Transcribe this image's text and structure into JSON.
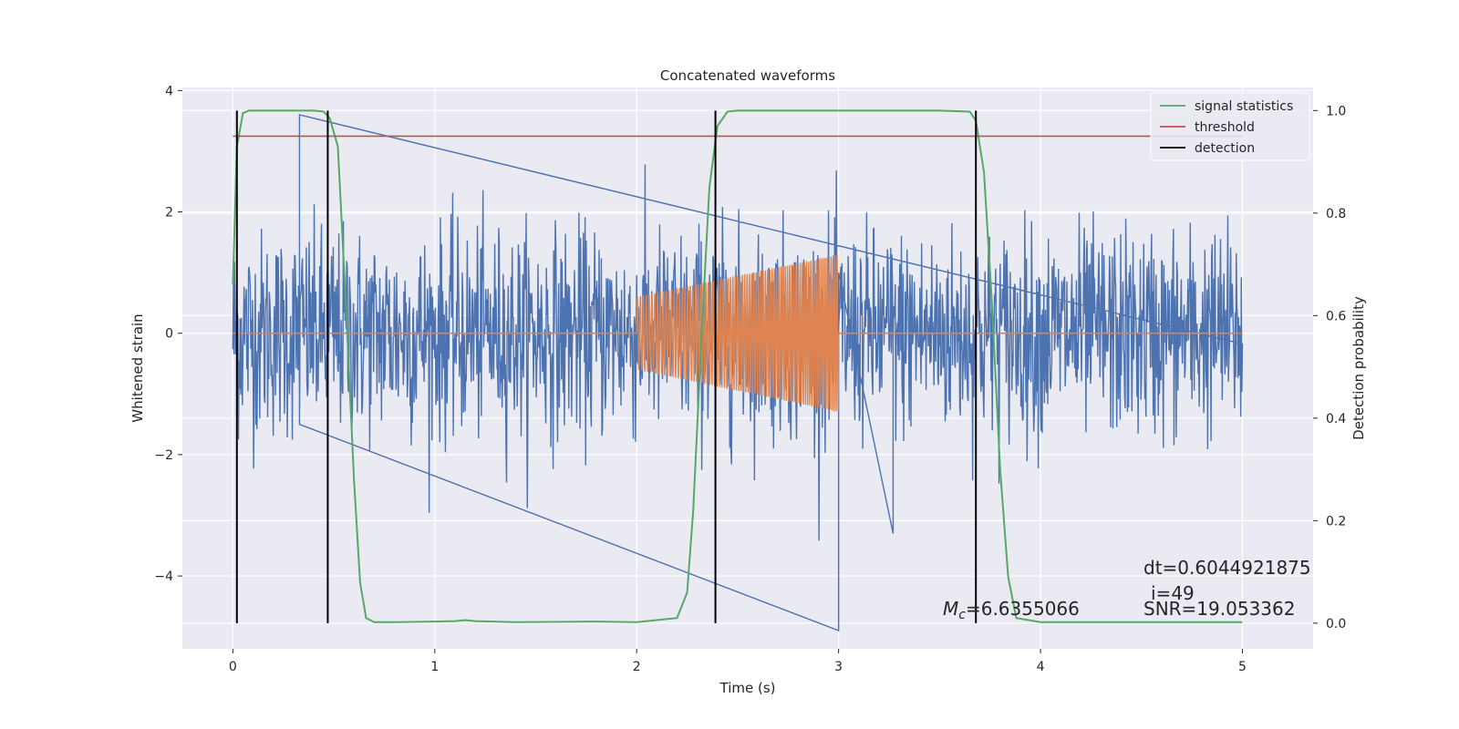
{
  "chart_data": {
    "type": "line",
    "title": "Concatenated waveforms",
    "xlabel": "Time (s)",
    "ylabel": "Whitened strain",
    "y2label": "Detection probability",
    "xlim": [
      -0.25,
      5.35
    ],
    "ylim": [
      -5.2,
      4.05
    ],
    "y2lim": [
      -0.05,
      1.045
    ],
    "x_ticks": [
      0,
      1,
      2,
      3,
      4,
      5
    ],
    "x_tick_labels": [
      "0",
      "1",
      "2",
      "3",
      "4",
      "5"
    ],
    "y_ticks": [
      -4,
      -2,
      0,
      2,
      4
    ],
    "y_tick_labels": [
      "−4",
      "−2",
      "0",
      "2",
      "4"
    ],
    "y2_ticks": [
      0.0,
      0.2,
      0.4,
      0.6,
      0.8,
      1.0
    ],
    "y2_tick_labels": [
      "0.0",
      "0.2",
      "0.4",
      "0.6",
      "0.8",
      "1.0"
    ],
    "grid": true,
    "legend_position": "top-right",
    "noise": {
      "x_range": [
        0,
        5
      ],
      "std": 0.85,
      "envelope": 3.6
    },
    "injected_signal": {
      "x_range": [
        2,
        3
      ],
      "amp_start": 0.6,
      "amp_end": 1.3,
      "cycles": 68
    },
    "signal_statistics": {
      "name": "signal statistics",
      "x": [
        0.0,
        0.02,
        0.05,
        0.08,
        0.12,
        0.2,
        0.3,
        0.4,
        0.45,
        0.48,
        0.52,
        0.56,
        0.6,
        0.63,
        0.66,
        0.7,
        0.8,
        1.0,
        1.1,
        1.15,
        1.2,
        1.4,
        1.8,
        2.0,
        2.2,
        2.25,
        2.28,
        2.32,
        2.36,
        2.4,
        2.45,
        2.5,
        3.0,
        3.5,
        3.65,
        3.68,
        3.72,
        3.76,
        3.8,
        3.84,
        3.88,
        4.0,
        4.5,
        5.0
      ],
      "values": [
        0.66,
        0.93,
        0.995,
        1.0,
        1.0,
        1.0,
        1.0,
        1.0,
        0.998,
        0.985,
        0.93,
        0.62,
        0.28,
        0.08,
        0.01,
        0.002,
        0.002,
        0.003,
        0.004,
        0.006,
        0.004,
        0.002,
        0.003,
        0.002,
        0.01,
        0.06,
        0.22,
        0.55,
        0.85,
        0.97,
        0.998,
        1.0,
        1.0,
        1.0,
        0.998,
        0.98,
        0.88,
        0.62,
        0.3,
        0.09,
        0.01,
        0.002,
        0.002,
        0.002
      ]
    },
    "threshold": {
      "name": "threshold",
      "value": 0.95,
      "x_range": [
        0,
        5
      ]
    },
    "detection": {
      "name": "detection",
      "x": [
        0.02,
        0.47,
        2.39,
        3.68
      ]
    },
    "annotations": {
      "dt": "dt=0.6044921875",
      "i": "i=49",
      "snr": "SNR=19.053362",
      "mc_symbol": "M",
      "mc_sub": "c",
      "mc_value": "=6.6355066"
    },
    "legend": [
      "signal statistics",
      "threshold",
      "detection"
    ]
  },
  "colors": {
    "background": "#eaeaf2",
    "grid": "#ffffff",
    "noise": "#4c72b0",
    "signal": "#dd8452",
    "statistics": "#55a868",
    "threshold": "#c44e52",
    "detection": "#000000"
  }
}
